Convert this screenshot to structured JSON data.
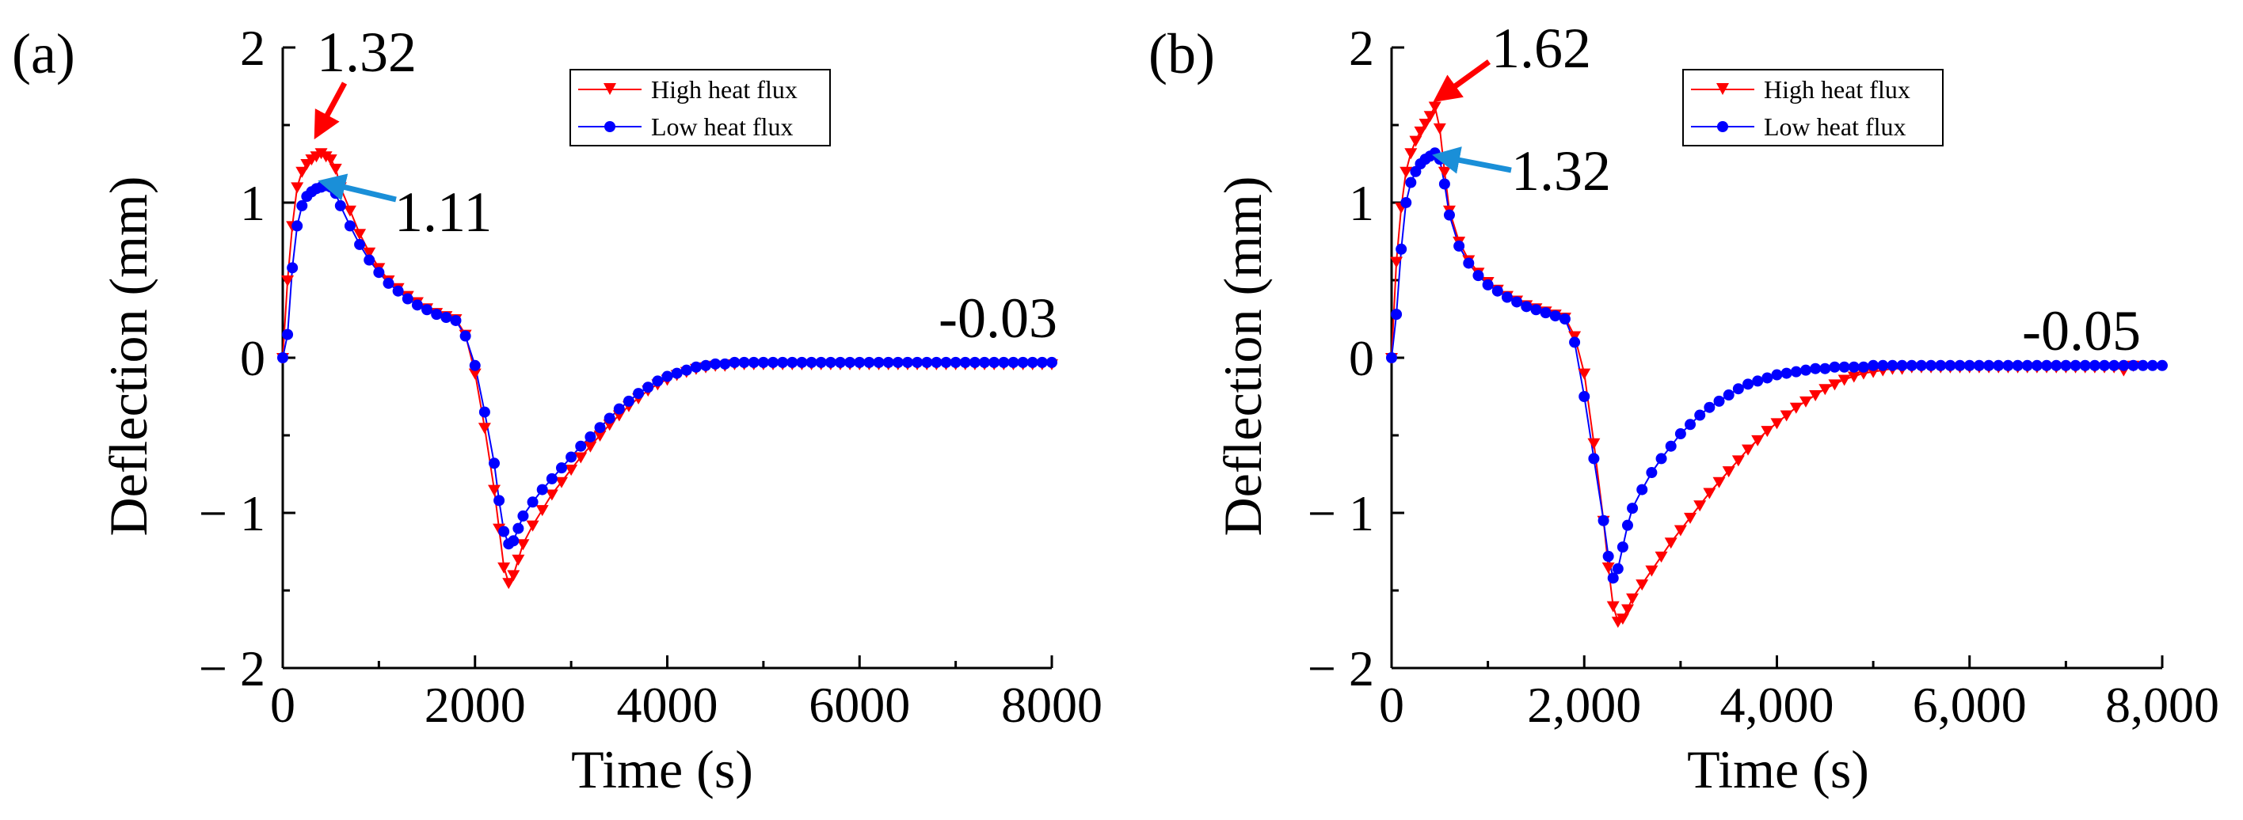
{
  "chart_data": [
    {
      "type": "line",
      "panel_label": "(a)",
      "xlabel": "Time (s)",
      "ylabel": "Deflection (mm)",
      "xlim": [
        0,
        8000
      ],
      "ylim": [
        -2,
        2
      ],
      "x_ticks": [
        0,
        2000,
        4000,
        6000,
        8000
      ],
      "x_tick_labels": [
        "0",
        "2000",
        "4000",
        "6000",
        "8000"
      ],
      "y_ticks": [
        -2,
        -1,
        0,
        1,
        2
      ],
      "y_tick_labels": [
        "− 2",
        "− 1",
        "0",
        "1",
        "2"
      ],
      "legend": "top-center",
      "series": [
        {
          "name": "High heat flux",
          "color": "#ff0000",
          "marker": "triangle-down",
          "x": [
            0,
            50,
            100,
            150,
            200,
            250,
            300,
            350,
            400,
            450,
            500,
            550,
            600,
            700,
            800,
            900,
            1000,
            1100,
            1200,
            1300,
            1400,
            1500,
            1600,
            1700,
            1800,
            1900,
            2000,
            2100,
            2200,
            2250,
            2300,
            2350,
            2400,
            2450,
            2500,
            2600,
            2700,
            2800,
            2900,
            3000,
            3100,
            3200,
            3300,
            3400,
            3500,
            3600,
            3700,
            3800,
            3900,
            4000,
            4100,
            4200,
            4300,
            4400,
            4500,
            4600,
            4700,
            4800,
            4900,
            5000,
            5100,
            5200,
            5300,
            5400,
            5500,
            5600,
            5700,
            5800,
            5900,
            6000,
            6100,
            6200,
            6300,
            6400,
            6500,
            6600,
            6700,
            6800,
            6900,
            7000,
            7100,
            7200,
            7300,
            7400,
            7500,
            7600,
            7700,
            7800,
            7900,
            8000
          ],
          "y": [
            0.0,
            0.5,
            0.85,
            1.1,
            1.2,
            1.25,
            1.28,
            1.3,
            1.32,
            1.3,
            1.28,
            1.22,
            1.1,
            0.95,
            0.8,
            0.68,
            0.58,
            0.5,
            0.45,
            0.4,
            0.36,
            0.32,
            0.29,
            0.27,
            0.25,
            0.15,
            -0.1,
            -0.45,
            -0.85,
            -1.1,
            -1.35,
            -1.45,
            -1.4,
            -1.3,
            -1.2,
            -1.08,
            -0.98,
            -0.88,
            -0.8,
            -0.72,
            -0.64,
            -0.57,
            -0.5,
            -0.43,
            -0.37,
            -0.31,
            -0.26,
            -0.21,
            -0.17,
            -0.14,
            -0.11,
            -0.09,
            -0.07,
            -0.06,
            -0.05,
            -0.05,
            -0.04,
            -0.04,
            -0.04,
            -0.04,
            -0.04,
            -0.04,
            -0.04,
            -0.04,
            -0.04,
            -0.04,
            -0.04,
            -0.04,
            -0.04,
            -0.04,
            -0.04,
            -0.04,
            -0.04,
            -0.04,
            -0.04,
            -0.04,
            -0.04,
            -0.04,
            -0.04,
            -0.04,
            -0.04,
            -0.04,
            -0.04,
            -0.04,
            -0.04,
            -0.04,
            -0.04,
            -0.04,
            -0.04,
            -0.04
          ]
        },
        {
          "name": "Low heat flux",
          "color": "#0000ff",
          "marker": "circle",
          "x": [
            0,
            50,
            100,
            150,
            200,
            250,
            300,
            350,
            400,
            450,
            500,
            550,
            600,
            700,
            800,
            900,
            1000,
            1100,
            1200,
            1300,
            1400,
            1500,
            1600,
            1700,
            1800,
            1900,
            2000,
            2100,
            2200,
            2250,
            2300,
            2350,
            2400,
            2450,
            2500,
            2600,
            2700,
            2800,
            2900,
            3000,
            3100,
            3200,
            3300,
            3400,
            3500,
            3600,
            3700,
            3800,
            3900,
            4000,
            4100,
            4200,
            4300,
            4400,
            4500,
            4600,
            4700,
            4800,
            4900,
            5000,
            5100,
            5200,
            5300,
            5400,
            5500,
            5600,
            5700,
            5800,
            5900,
            6000,
            6100,
            6200,
            6300,
            6400,
            6500,
            6600,
            6700,
            6800,
            6900,
            7000,
            7100,
            7200,
            7300,
            7400,
            7500,
            7600,
            7700,
            7800,
            7900,
            8000
          ],
          "y": [
            0.0,
            0.15,
            0.58,
            0.85,
            0.98,
            1.04,
            1.07,
            1.09,
            1.1,
            1.11,
            1.1,
            1.06,
            0.98,
            0.85,
            0.73,
            0.63,
            0.55,
            0.48,
            0.43,
            0.38,
            0.34,
            0.31,
            0.28,
            0.26,
            0.24,
            0.14,
            -0.05,
            -0.35,
            -0.68,
            -0.92,
            -1.12,
            -1.2,
            -1.18,
            -1.1,
            -1.02,
            -0.93,
            -0.85,
            -0.78,
            -0.71,
            -0.64,
            -0.57,
            -0.51,
            -0.45,
            -0.39,
            -0.33,
            -0.28,
            -0.23,
            -0.19,
            -0.15,
            -0.12,
            -0.1,
            -0.08,
            -0.06,
            -0.05,
            -0.04,
            -0.04,
            -0.03,
            -0.03,
            -0.03,
            -0.03,
            -0.03,
            -0.03,
            -0.03,
            -0.03,
            -0.03,
            -0.03,
            -0.03,
            -0.03,
            -0.03,
            -0.03,
            -0.03,
            -0.03,
            -0.03,
            -0.03,
            -0.03,
            -0.03,
            -0.03,
            -0.03,
            -0.03,
            -0.03,
            -0.03,
            -0.03,
            -0.03,
            -0.03,
            -0.03,
            -0.03,
            -0.03,
            -0.03,
            -0.03,
            -0.03
          ]
        }
      ],
      "annotations": [
        {
          "text": "1.32",
          "color": "#ff0000",
          "x": 400,
          "y": 1.32
        },
        {
          "text": "1.11",
          "color": "#1a8fd8",
          "x": 450,
          "y": 1.11
        },
        {
          "text": "-0.03",
          "x": 7500,
          "y": -0.03
        }
      ]
    },
    {
      "type": "line",
      "panel_label": "(b)",
      "xlabel": "Time (s)",
      "ylabel": "Deflection (mm)",
      "xlim": [
        0,
        8000
      ],
      "ylim": [
        -2,
        2
      ],
      "x_ticks": [
        0,
        2000,
        4000,
        6000,
        8000
      ],
      "x_tick_labels": [
        "0",
        "2,000",
        "4,000",
        "6,000",
        "8,000"
      ],
      "y_ticks": [
        -2,
        -1,
        0,
        1,
        2
      ],
      "y_tick_labels": [
        "− 2",
        "− 1",
        "0",
        "1",
        "2"
      ],
      "legend": "top-center",
      "series": [
        {
          "name": "High heat flux",
          "color": "#ff0000",
          "marker": "triangle-down",
          "x": [
            0,
            50,
            100,
            150,
            200,
            250,
            300,
            350,
            400,
            450,
            500,
            550,
            600,
            700,
            800,
            900,
            1000,
            1100,
            1200,
            1300,
            1400,
            1500,
            1600,
            1700,
            1800,
            1900,
            2000,
            2100,
            2200,
            2250,
            2300,
            2350,
            2400,
            2450,
            2500,
            2600,
            2700,
            2800,
            2900,
            3000,
            3100,
            3200,
            3300,
            3400,
            3500,
            3600,
            3700,
            3800,
            3900,
            4000,
            4100,
            4200,
            4300,
            4400,
            4500,
            4600,
            4700,
            4800,
            4900,
            5000,
            5100,
            5200,
            5300,
            5400,
            5500,
            5600,
            5700,
            5800,
            5900,
            6000,
            6100,
            6200,
            6300,
            6400,
            6500,
            6600,
            6700,
            6800,
            6900,
            7000,
            7100,
            7200,
            7300,
            7400,
            7500,
            7600,
            7700
          ],
          "y": [
            0.0,
            0.62,
            0.97,
            1.2,
            1.32,
            1.4,
            1.46,
            1.51,
            1.56,
            1.62,
            1.48,
            1.2,
            0.95,
            0.75,
            0.63,
            0.55,
            0.49,
            0.44,
            0.4,
            0.37,
            0.34,
            0.32,
            0.3,
            0.28,
            0.26,
            0.14,
            -0.1,
            -0.55,
            -1.05,
            -1.35,
            -1.6,
            -1.7,
            -1.68,
            -1.62,
            -1.55,
            -1.46,
            -1.37,
            -1.28,
            -1.19,
            -1.11,
            -1.03,
            -0.95,
            -0.87,
            -0.8,
            -0.73,
            -0.66,
            -0.59,
            -0.53,
            -0.47,
            -0.42,
            -0.37,
            -0.32,
            -0.28,
            -0.24,
            -0.2,
            -0.17,
            -0.14,
            -0.12,
            -0.1,
            -0.09,
            -0.08,
            -0.07,
            -0.07,
            -0.06,
            -0.06,
            -0.06,
            -0.06,
            -0.06,
            -0.06,
            -0.06,
            -0.06,
            -0.06,
            -0.06,
            -0.06,
            -0.06,
            -0.06,
            -0.06,
            -0.06,
            -0.06,
            -0.06,
            -0.06,
            -0.06,
            -0.06,
            -0.06,
            -0.06,
            -0.08,
            -0.05
          ]
        },
        {
          "name": "Low heat flux",
          "color": "#0000ff",
          "marker": "circle",
          "x": [
            0,
            50,
            100,
            150,
            200,
            250,
            300,
            350,
            400,
            450,
            500,
            550,
            600,
            700,
            800,
            900,
            1000,
            1100,
            1200,
            1300,
            1400,
            1500,
            1600,
            1700,
            1800,
            1900,
            2000,
            2100,
            2200,
            2250,
            2300,
            2350,
            2400,
            2450,
            2500,
            2600,
            2700,
            2800,
            2900,
            3000,
            3100,
            3200,
            3300,
            3400,
            3500,
            3600,
            3700,
            3800,
            3900,
            4000,
            4100,
            4200,
            4300,
            4400,
            4500,
            4600,
            4700,
            4800,
            4900,
            5000,
            5100,
            5200,
            5300,
            5400,
            5500,
            5600,
            5700,
            5800,
            5900,
            6000,
            6100,
            6200,
            6300,
            6400,
            6500,
            6600,
            6700,
            6800,
            6900,
            7000,
            7100,
            7200,
            7300,
            7400,
            7500,
            7600,
            7700,
            7800,
            7900,
            8000
          ],
          "y": [
            0.0,
            0.28,
            0.7,
            1.0,
            1.13,
            1.2,
            1.25,
            1.28,
            1.3,
            1.32,
            1.28,
            1.12,
            0.92,
            0.72,
            0.61,
            0.53,
            0.47,
            0.43,
            0.39,
            0.36,
            0.33,
            0.31,
            0.29,
            0.27,
            0.25,
            0.1,
            -0.25,
            -0.65,
            -1.05,
            -1.28,
            -1.42,
            -1.36,
            -1.22,
            -1.08,
            -0.97,
            -0.85,
            -0.74,
            -0.65,
            -0.57,
            -0.49,
            -0.43,
            -0.37,
            -0.32,
            -0.28,
            -0.24,
            -0.2,
            -0.17,
            -0.15,
            -0.13,
            -0.11,
            -0.1,
            -0.09,
            -0.08,
            -0.07,
            -0.07,
            -0.06,
            -0.06,
            -0.06,
            -0.06,
            -0.05,
            -0.05,
            -0.05,
            -0.05,
            -0.05,
            -0.05,
            -0.05,
            -0.05,
            -0.05,
            -0.05,
            -0.05,
            -0.05,
            -0.05,
            -0.05,
            -0.05,
            -0.05,
            -0.05,
            -0.05,
            -0.05,
            -0.05,
            -0.05,
            -0.05,
            -0.05,
            -0.05,
            -0.05,
            -0.05,
            -0.05,
            -0.05,
            -0.05,
            -0.05,
            -0.05
          ]
        }
      ],
      "annotations": [
        {
          "text": "1.62",
          "color": "#ff0000",
          "x": 450,
          "y": 1.62
        },
        {
          "text": "1.32",
          "color": "#1a8fd8",
          "x": 450,
          "y": 1.32
        },
        {
          "text": "-0.05",
          "x": 7800,
          "y": -0.05
        }
      ]
    }
  ]
}
